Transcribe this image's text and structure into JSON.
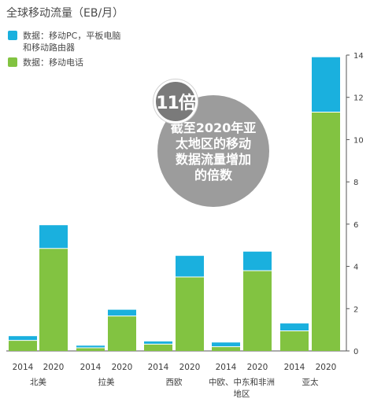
{
  "title": "全球移动流量（EB/月）",
  "legend": [
    {
      "label": "数据：移动PC，平板电脑和移动路由器",
      "color": "#1ab0de"
    },
    {
      "label": "数据：移动电话",
      "color": "#82c341"
    }
  ],
  "callout": {
    "badge": "11倍",
    "text": "截至2020年亚太地区的移动数据流量增加的倍数"
  },
  "chart_data": {
    "type": "bar",
    "stacked": true,
    "title": "全球移动流量（EB/月）",
    "regions": [
      "北美",
      "拉美",
      "西欧",
      "中欧、中东和非洲地区",
      "亚太"
    ],
    "years": [
      "2014",
      "2020"
    ],
    "ylim": [
      0,
      14
    ],
    "yticks": [
      0,
      2,
      4,
      6,
      8,
      10,
      12,
      14
    ],
    "series": [
      {
        "name": "数据：移动电话",
        "color": "#82c341",
        "values": [
          0.5,
          4.85,
          0.15,
          1.65,
          0.32,
          3.5,
          0.2,
          3.8,
          0.95,
          11.3
        ]
      },
      {
        "name": "数据：移动PC，平板电脑和移动路由器",
        "color": "#1ab0de",
        "values": [
          0.2,
          1.1,
          0.1,
          0.3,
          0.13,
          1.0,
          0.2,
          0.9,
          0.35,
          2.6
        ]
      }
    ]
  }
}
